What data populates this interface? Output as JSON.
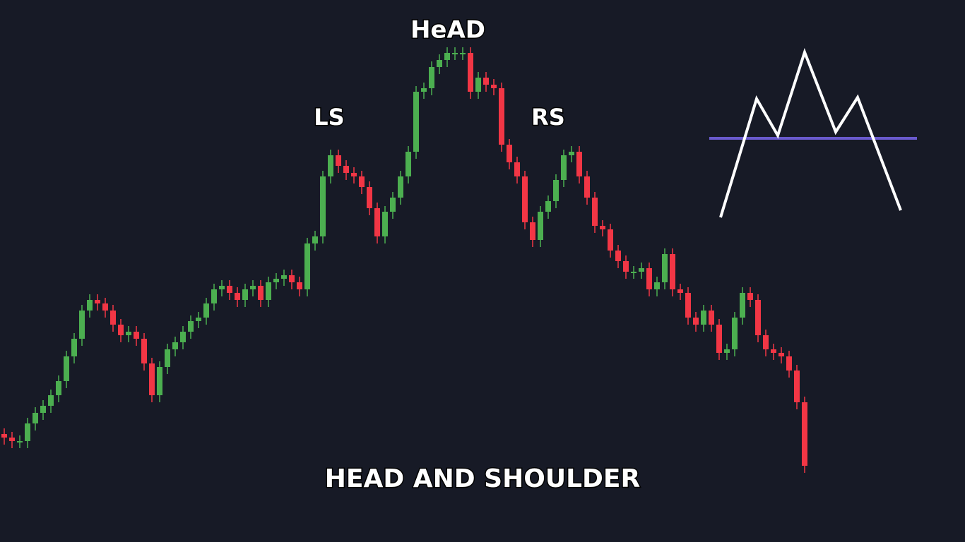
{
  "chart_data": {
    "type": "candlestick",
    "annotations": {
      "head": "HeAD",
      "left_shoulder": "LS",
      "right_shoulder": "RS"
    },
    "caption": "HEAD AND SHOULDER",
    "up_color": "#4caf50",
    "down_color": "#f23645",
    "ylim": [
      0,
      660
    ],
    "open": [
      85,
      80,
      75,
      75,
      100,
      115,
      125,
      140,
      160,
      195,
      220,
      260,
      275,
      270,
      260,
      240,
      225,
      230,
      220,
      185,
      140,
      180,
      205,
      215,
      230,
      245,
      250,
      270,
      290,
      295,
      285,
      275,
      290,
      295,
      275,
      300,
      305,
      310,
      300,
      290,
      355,
      365,
      450,
      480,
      465,
      455,
      450,
      435,
      405,
      365,
      400,
      420,
      450,
      485,
      570,
      575,
      605,
      615,
      625,
      625,
      625,
      570,
      590,
      580,
      575,
      495,
      470,
      450,
      385,
      360,
      400,
      415,
      445,
      480,
      485,
      450,
      420,
      380,
      375,
      345,
      330,
      315,
      315,
      320,
      290,
      300,
      340,
      290,
      285,
      250,
      240,
      260,
      240,
      200,
      205,
      250,
      285,
      275,
      225,
      205,
      200,
      195,
      175,
      130
    ],
    "high": [
      93,
      88,
      83,
      108,
      123,
      133,
      148,
      168,
      203,
      228,
      268,
      283,
      283,
      278,
      268,
      248,
      238,
      238,
      228,
      193,
      188,
      213,
      223,
      238,
      253,
      258,
      278,
      298,
      303,
      303,
      293,
      298,
      303,
      303,
      308,
      313,
      318,
      318,
      308,
      363,
      373,
      458,
      488,
      488,
      473,
      463,
      458,
      443,
      413,
      408,
      428,
      458,
      493,
      578,
      583,
      613,
      623,
      633,
      633,
      633,
      633,
      598,
      598,
      588,
      583,
      503,
      478,
      458,
      393,
      408,
      423,
      453,
      488,
      493,
      493,
      458,
      428,
      388,
      383,
      353,
      338,
      323,
      328,
      328,
      308,
      348,
      348,
      298,
      293,
      258,
      268,
      268,
      248,
      213,
      258,
      293,
      293,
      283,
      233,
      213,
      208,
      203,
      183,
      138
    ],
    "low": [
      70,
      65,
      65,
      65,
      90,
      105,
      115,
      130,
      150,
      185,
      210,
      250,
      260,
      250,
      230,
      215,
      215,
      210,
      175,
      130,
      130,
      170,
      195,
      205,
      220,
      235,
      240,
      260,
      280,
      275,
      265,
      265,
      280,
      265,
      265,
      290,
      295,
      290,
      280,
      280,
      345,
      355,
      440,
      455,
      445,
      440,
      425,
      395,
      355,
      355,
      390,
      410,
      440,
      475,
      560,
      565,
      595,
      605,
      615,
      615,
      560,
      560,
      570,
      565,
      485,
      460,
      440,
      375,
      350,
      350,
      390,
      405,
      435,
      470,
      440,
      410,
      370,
      365,
      335,
      320,
      305,
      305,
      305,
      280,
      280,
      290,
      280,
      275,
      240,
      230,
      230,
      230,
      190,
      190,
      195,
      240,
      265,
      215,
      195,
      190,
      185,
      165,
      120,
      30
    ],
    "close": [
      80,
      75,
      75,
      100,
      115,
      125,
      140,
      160,
      195,
      220,
      260,
      275,
      270,
      260,
      240,
      225,
      230,
      220,
      185,
      140,
      180,
      205,
      215,
      230,
      245,
      250,
      270,
      290,
      295,
      285,
      275,
      290,
      295,
      275,
      300,
      305,
      310,
      300,
      290,
      355,
      365,
      450,
      480,
      465,
      455,
      450,
      435,
      405,
      365,
      400,
      420,
      450,
      485,
      570,
      575,
      605,
      615,
      625,
      625,
      625,
      570,
      590,
      580,
      575,
      495,
      470,
      450,
      385,
      360,
      400,
      415,
      445,
      480,
      485,
      450,
      420,
      380,
      375,
      345,
      330,
      315,
      315,
      320,
      290,
      300,
      340,
      290,
      285,
      250,
      240,
      260,
      240,
      200,
      205,
      250,
      285,
      275,
      225,
      205,
      200,
      195,
      175,
      130,
      40
    ]
  }
}
